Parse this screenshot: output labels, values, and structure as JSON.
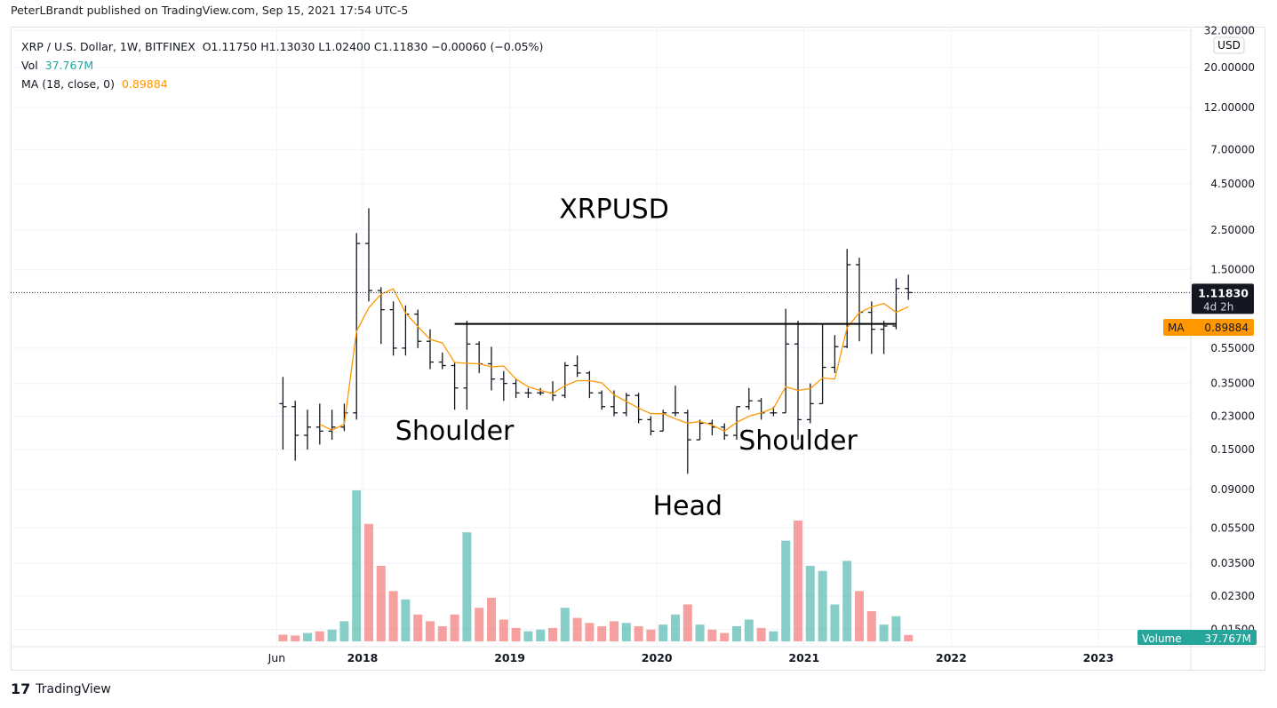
{
  "publisher_line": "PeterLBrandt published on TradingView.com, Sep 15, 2021 17:54 UTC-5",
  "legend": {
    "symbol": "XRP / U.S. Dollar, 1W, BITFINEX",
    "ohlc": "O1.11750  H1.13030  L1.02400  C1.11830  −0.00060 (−0.05%)",
    "vol_label": "Vol",
    "vol_value": "37.767M",
    "ma_label": "MA (18, close, 0)",
    "ma_value": "0.89884"
  },
  "brand": "TradingView",
  "colors": {
    "up": "#26a69a",
    "down": "#ef5350",
    "ma": "#ff9800",
    "bars": "#131722",
    "last_price_bg": "#131722"
  },
  "chart_data": {
    "type": "ohlc",
    "scale": "log",
    "currency": "USD",
    "grid": true,
    "y_ticks": [
      32,
      20,
      12,
      7,
      4.5,
      2.5,
      1.5,
      0.55,
      0.35,
      0.23,
      0.15,
      0.09,
      0.055,
      0.035,
      0.023,
      0.015
    ],
    "y_tick_labels": [
      "32.00000",
      "20.00000",
      "12.00000",
      "7.00000",
      "4.50000",
      "2.50000",
      "1.50000",
      "0.55000",
      "0.35000",
      "0.23000",
      "0.15000",
      "0.09000",
      "0.05500",
      "0.03500",
      "0.02300",
      "0.01500"
    ],
    "x_ticks": [
      {
        "label": "Jun",
        "date": "2017-06"
      },
      {
        "label": "2018",
        "date": "2018-01"
      },
      {
        "label": "2019",
        "date": "2019-01"
      },
      {
        "label": "2020",
        "date": "2020-01"
      },
      {
        "label": "2021",
        "date": "2021-01"
      },
      {
        "label": "2022",
        "date": "2022-01"
      },
      {
        "label": "2023",
        "date": "2023-01"
      }
    ],
    "last_price": {
      "value": "1.11830",
      "countdown": "4d 2h"
    },
    "ma_tag": {
      "label": "MA",
      "value": "0.89884"
    },
    "volume_tag": {
      "label": "Volume",
      "value": "37.767M"
    },
    "neckline": {
      "price": 0.75,
      "from": "2018-08",
      "to": "2021-08"
    },
    "annotations": [
      {
        "text": "XRPUSD",
        "date": "2019-09",
        "price": 2.9
      },
      {
        "text": "Shoulder",
        "date": "2018-08",
        "price": 0.17
      },
      {
        "text": "Head",
        "date": "2020-03",
        "price": 0.065
      },
      {
        "text": "Shoulder",
        "date": "2020-12",
        "price": 0.15
      }
    ],
    "bars": [
      [
        "2017-06",
        0.27,
        0.38,
        0.15,
        0.26,
        40
      ],
      [
        "2017-07",
        0.26,
        0.28,
        0.13,
        0.18,
        35
      ],
      [
        "2017-08",
        0.18,
        0.25,
        0.15,
        0.2,
        50
      ],
      [
        "2017-09",
        0.2,
        0.27,
        0.16,
        0.19,
        60
      ],
      [
        "2017-10",
        0.19,
        0.25,
        0.17,
        0.2,
        70
      ],
      [
        "2017-11",
        0.2,
        0.27,
        0.19,
        0.24,
        120
      ],
      [
        "2017-12",
        0.24,
        2.4,
        0.22,
        2.1,
        900
      ],
      [
        "2018-01",
        2.1,
        3.3,
        1.0,
        1.15,
        700
      ],
      [
        "2018-02",
        1.15,
        1.2,
        0.58,
        0.9,
        450
      ],
      [
        "2018-03",
        0.9,
        1.0,
        0.5,
        0.55,
        300
      ],
      [
        "2018-04",
        0.55,
        0.95,
        0.5,
        0.85,
        250
      ],
      [
        "2018-05",
        0.85,
        0.9,
        0.55,
        0.6,
        160
      ],
      [
        "2018-06",
        0.6,
        0.7,
        0.42,
        0.46,
        120
      ],
      [
        "2018-07",
        0.46,
        0.52,
        0.42,
        0.44,
        90
      ],
      [
        "2018-08",
        0.44,
        0.46,
        0.25,
        0.33,
        160
      ],
      [
        "2018-09",
        0.33,
        0.78,
        0.25,
        0.58,
        650
      ],
      [
        "2018-10",
        0.58,
        0.6,
        0.4,
        0.45,
        200
      ],
      [
        "2018-11",
        0.45,
        0.56,
        0.32,
        0.37,
        260
      ],
      [
        "2018-12",
        0.37,
        0.41,
        0.28,
        0.35,
        130
      ],
      [
        "2019-01",
        0.35,
        0.37,
        0.29,
        0.31,
        80
      ],
      [
        "2019-02",
        0.31,
        0.33,
        0.29,
        0.31,
        60
      ],
      [
        "2019-03",
        0.31,
        0.33,
        0.3,
        0.31,
        70
      ],
      [
        "2019-04",
        0.31,
        0.36,
        0.28,
        0.3,
        80
      ],
      [
        "2019-05",
        0.3,
        0.46,
        0.29,
        0.44,
        200
      ],
      [
        "2019-06",
        0.44,
        0.5,
        0.38,
        0.4,
        140
      ],
      [
        "2019-07",
        0.4,
        0.41,
        0.29,
        0.31,
        110
      ],
      [
        "2019-08",
        0.31,
        0.32,
        0.25,
        0.26,
        90
      ],
      [
        "2019-09",
        0.26,
        0.32,
        0.23,
        0.24,
        120
      ],
      [
        "2019-10",
        0.24,
        0.31,
        0.23,
        0.3,
        110
      ],
      [
        "2019-11",
        0.3,
        0.31,
        0.21,
        0.22,
        90
      ],
      [
        "2019-12",
        0.22,
        0.23,
        0.18,
        0.19,
        70
      ],
      [
        "2020-01",
        0.19,
        0.25,
        0.19,
        0.24,
        100
      ],
      [
        "2020-02",
        0.24,
        0.34,
        0.23,
        0.24,
        160
      ],
      [
        "2020-03",
        0.24,
        0.25,
        0.11,
        0.17,
        220
      ],
      [
        "2020-04",
        0.17,
        0.22,
        0.17,
        0.21,
        100
      ],
      [
        "2020-05",
        0.21,
        0.22,
        0.18,
        0.2,
        70
      ],
      [
        "2020-06",
        0.2,
        0.21,
        0.17,
        0.18,
        50
      ],
      [
        "2020-07",
        0.18,
        0.26,
        0.17,
        0.26,
        90
      ],
      [
        "2020-08",
        0.26,
        0.33,
        0.25,
        0.28,
        130
      ],
      [
        "2020-09",
        0.28,
        0.29,
        0.22,
        0.24,
        80
      ],
      [
        "2020-10",
        0.24,
        0.26,
        0.23,
        0.24,
        60
      ],
      [
        "2020-11",
        0.24,
        0.91,
        0.24,
        0.58,
        600
      ],
      [
        "2020-12",
        0.58,
        0.78,
        0.17,
        0.22,
        720
      ],
      [
        "2021-01",
        0.22,
        0.35,
        0.21,
        0.27,
        450
      ],
      [
        "2021-02",
        0.27,
        0.75,
        0.27,
        0.43,
        420
      ],
      [
        "2021-03",
        0.43,
        0.65,
        0.4,
        0.56,
        220
      ],
      [
        "2021-04",
        0.56,
        1.96,
        0.55,
        1.6,
        480
      ],
      [
        "2021-05",
        1.6,
        1.75,
        0.6,
        0.87,
        300
      ],
      [
        "2021-06",
        0.87,
        1.0,
        0.51,
        0.7,
        180
      ],
      [
        "2021-07",
        0.7,
        0.78,
        0.51,
        0.73,
        100
      ],
      [
        "2021-08",
        0.73,
        1.34,
        0.7,
        1.18,
        150
      ],
      [
        "2021-09",
        1.18,
        1.41,
        1.02,
        1.12,
        38
      ]
    ],
    "ma_period_months": 4
  }
}
